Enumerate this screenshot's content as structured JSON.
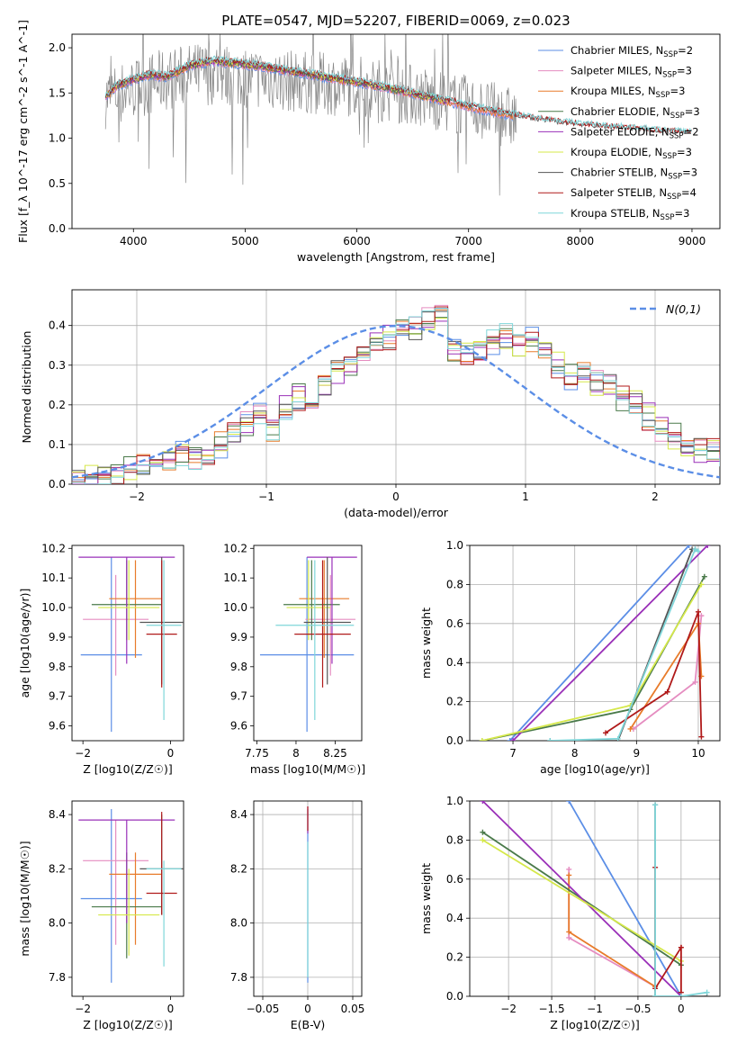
{
  "figure_title": "PLATE=0547, MJD=52207, FIBERID=0069, z=0.023",
  "colors": {
    "Chabrier MILES": "#5b8ee6",
    "Salpeter MILES": "#e58cc0",
    "Kroupa MILES": "#e87b2a",
    "Chabrier ELODIE": "#4a7a4a",
    "Salpeter ELODIE": "#9a30b8",
    "Kroupa ELODIE": "#d5e84a",
    "Chabrier STELIB": "#555555",
    "Salpeter STELIB": "#b01a1a",
    "Kroupa STELIB": "#7fd6d9",
    "data": "#888888",
    "gaussian": "#5b8ee6"
  },
  "chart_data": [
    {
      "id": "spectrum",
      "type": "line",
      "title": "PLATE=0547, MJD=52207, FIBERID=0069, z=0.023",
      "xlabel": "wavelength [Angstrom, rest frame]",
      "ylabel": "Flux [f_λ 10^-17 erg cm^-2 s^-1 A^-1]",
      "xlim": [
        3450,
        9250
      ],
      "ylim": [
        0,
        2.15
      ],
      "xticks": [
        4000,
        5000,
        6000,
        7000,
        8000,
        9000
      ],
      "yticks": [
        0.0,
        0.5,
        1.0,
        1.5,
        2.0
      ],
      "legend_loc": "top-right",
      "data_series": {
        "name": "data",
        "x_range": [
          3750,
          7430
        ],
        "trend_x": [
          3750,
          4000,
          4300,
          4600,
          5000,
          5500,
          6000,
          6500,
          7000,
          7400
        ],
        "trend_y": [
          1.45,
          1.55,
          1.65,
          1.72,
          1.68,
          1.62,
          1.58,
          1.48,
          1.35,
          1.22
        ]
      },
      "model_trend": {
        "x": [
          3750,
          3850,
          4000,
          4150,
          4300,
          4500,
          4700,
          4900,
          5100,
          5300,
          5500,
          5800,
          6100,
          6400,
          6700,
          7000,
          7200,
          7400,
          7600,
          7800,
          8000,
          8200,
          8400,
          8600,
          8800,
          9000
        ],
        "y": [
          1.45,
          1.58,
          1.65,
          1.7,
          1.68,
          1.8,
          1.85,
          1.83,
          1.8,
          1.76,
          1.72,
          1.66,
          1.6,
          1.52,
          1.44,
          1.35,
          1.3,
          1.25,
          1.2,
          1.17,
          1.14,
          1.12,
          1.1,
          1.08,
          1.06,
          1.05
        ]
      },
      "series": [
        {
          "name": "Chabrier MILES, N_SSP=2",
          "label_main": "Chabrier MILES, N",
          "label_sub": "SSP",
          "label_tail": "=2",
          "x_end": 7400
        },
        {
          "name": "Salpeter MILES, N_SSP=3",
          "label_main": "Salpeter MILES, N",
          "label_sub": "SSP",
          "label_tail": "=3",
          "x_end": 7400
        },
        {
          "name": "Kroupa MILES, N_SSP=3",
          "label_main": "Kroupa MILES, N",
          "label_sub": "SSP",
          "label_tail": "=3",
          "x_end": 7400
        },
        {
          "name": "Chabrier ELODIE, N_SSP=3",
          "label_main": "Chabrier ELODIE, N",
          "label_sub": "SSP",
          "label_tail": "=3",
          "x_end": 6800
        },
        {
          "name": "Salpeter ELODIE, N_SSP=2",
          "label_main": "Salpeter ELODIE, N",
          "label_sub": "SSP",
          "label_tail": "=2",
          "x_end": 6800
        },
        {
          "name": "Kroupa ELODIE, N_SSP=3",
          "label_main": "Kroupa ELODIE, N",
          "label_sub": "SSP",
          "label_tail": "=3",
          "x_end": 6800
        },
        {
          "name": "Chabrier STELIB, N_SSP=3",
          "label_main": "Chabrier STELIB, N",
          "label_sub": "SSP",
          "label_tail": "=3",
          "x_end": 9000
        },
        {
          "name": "Salpeter STELIB, N_SSP=4",
          "label_main": "Salpeter STELIB, N",
          "label_sub": "SSP",
          "label_tail": "=4",
          "x_end": 9000
        },
        {
          "name": "Kroupa STELIB, N_SSP=3",
          "label_main": "Kroupa STELIB, N",
          "label_sub": "SSP",
          "label_tail": "=3",
          "x_end": 9000
        }
      ]
    },
    {
      "id": "residuals",
      "type": "line",
      "xlabel": "(data-model)/error",
      "ylabel": "Normed distribution",
      "xlim": [
        -2.5,
        2.5
      ],
      "ylim": [
        0,
        0.49
      ],
      "xticks": [
        -2,
        -1,
        0,
        1,
        2
      ],
      "yticks": [
        0.0,
        0.1,
        0.2,
        0.3,
        0.4
      ],
      "grid": true,
      "legend": "N(0,1)",
      "legend_loc": "top-right",
      "hist_bin_edges_step": 0.1,
      "hist_mean": [
        0.01,
        0.015,
        0.025,
        0.033,
        0.04,
        0.045,
        0.05,
        0.06,
        0.08,
        0.072,
        0.085,
        0.1,
        0.13,
        0.15,
        0.17,
        0.14,
        0.19,
        0.22,
        0.2,
        0.25,
        0.29,
        0.31,
        0.33,
        0.36,
        0.37,
        0.38,
        0.39,
        0.41,
        0.43,
        0.34,
        0.33,
        0.34,
        0.36,
        0.37,
        0.35,
        0.36,
        0.33,
        0.3,
        0.27,
        0.28,
        0.26,
        0.25,
        0.22,
        0.2,
        0.17,
        0.14,
        0.12,
        0.1,
        0.09,
        0.085,
        0.08,
        0.07,
        0.06,
        0.05,
        0.045,
        0.035,
        0.03,
        0.025,
        0.02,
        0.015
      ],
      "gaussian": {
        "mean": 0,
        "sigma": 1
      }
    },
    {
      "id": "age_vs_Z",
      "type": "scatter",
      "xlabel": "Z [log10(Z/Z☉)]",
      "ylabel": "age [log10(age/yr)]",
      "xlim": [
        -2.25,
        0.3
      ],
      "ylim": [
        9.55,
        10.21
      ],
      "xticks": [
        -2,
        0
      ],
      "yticks": [
        9.6,
        9.7,
        9.8,
        9.9,
        10.0,
        10.1,
        10.2
      ],
      "points": [
        {
          "model": "Chabrier MILES",
          "x": -1.35,
          "y": 9.84,
          "xerr": 0.7,
          "yerr_lo": 0.26,
          "yerr_hi": 0.33
        },
        {
          "model": "Salpeter MILES",
          "x": -1.25,
          "y": 9.96,
          "xerr": 0.75,
          "yerr_lo": 0.19,
          "yerr_hi": 0.15
        },
        {
          "model": "Kroupa MILES",
          "x": -0.8,
          "y": 10.03,
          "xerr": 0.6,
          "yerr_lo": 0.2,
          "yerr_hi": 0.13
        },
        {
          "model": "Chabrier ELODIE",
          "x": -1.0,
          "y": 10.01,
          "xerr": 0.8,
          "yerr_lo": 0.12,
          "yerr_hi": 0.15
        },
        {
          "model": "Salpeter ELODIE",
          "x": -1.0,
          "y": 10.17,
          "xerr": 1.1,
          "yerr_lo": 0.36,
          "yerr_hi": 0.0
        },
        {
          "model": "Kroupa ELODIE",
          "x": -0.95,
          "y": 10.0,
          "xerr": 0.7,
          "yerr_lo": 0.11,
          "yerr_hi": 0.16
        },
        {
          "model": "Chabrier STELIB",
          "x": -0.2,
          "y": 9.95,
          "xerr": 0.5,
          "yerr_lo": 0.21,
          "yerr_hi": 0.22
        },
        {
          "model": "Salpeter STELIB",
          "x": -0.2,
          "y": 9.91,
          "xerr": 0.35,
          "yerr_lo": 0.18,
          "yerr_hi": 0.25
        },
        {
          "model": "Kroupa STELIB",
          "x": -0.15,
          "y": 9.94,
          "xerr": 0.4,
          "yerr_lo": 0.32,
          "yerr_hi": 0.22
        }
      ]
    },
    {
      "id": "age_vs_mass",
      "type": "scatter",
      "xlabel": "mass [log10(M/M☉)]",
      "xlim": [
        7.73,
        8.42
      ],
      "ylim": [
        9.55,
        10.21
      ],
      "xticks": [
        7.75,
        8.0,
        8.25
      ],
      "yticks": [
        9.6,
        9.7,
        9.8,
        9.9,
        10.0,
        10.1,
        10.2
      ],
      "points": [
        {
          "model": "Chabrier MILES",
          "x": 8.07,
          "y": 9.84,
          "xerr": 0.3,
          "yerr_lo": 0.26,
          "yerr_hi": 0.33
        },
        {
          "model": "Salpeter MILES",
          "x": 8.22,
          "y": 9.96,
          "xerr": 0.16,
          "yerr_lo": 0.19,
          "yerr_hi": 0.15
        },
        {
          "model": "Kroupa MILES",
          "x": 8.18,
          "y": 10.03,
          "xerr": 0.16,
          "yerr_lo": 0.2,
          "yerr_hi": 0.13
        },
        {
          "model": "Chabrier ELODIE",
          "x": 8.1,
          "y": 10.01,
          "xerr": 0.18,
          "yerr_lo": 0.12,
          "yerr_hi": 0.15
        },
        {
          "model": "Salpeter ELODIE",
          "x": 8.23,
          "y": 10.17,
          "xerr": 0.16,
          "yerr_lo": 0.36,
          "yerr_hi": 0.0
        },
        {
          "model": "Kroupa ELODIE",
          "x": 8.08,
          "y": 10.0,
          "xerr": 0.14,
          "yerr_lo": 0.11,
          "yerr_hi": 0.16
        },
        {
          "model": "Chabrier STELIB",
          "x": 8.2,
          "y": 9.95,
          "xerr": 0.15,
          "yerr_lo": 0.21,
          "yerr_hi": 0.22
        },
        {
          "model": "Salpeter STELIB",
          "x": 8.17,
          "y": 9.91,
          "xerr": 0.18,
          "yerr_lo": 0.18,
          "yerr_hi": 0.25
        },
        {
          "model": "Kroupa STELIB",
          "x": 8.12,
          "y": 9.94,
          "xerr": 0.25,
          "yerr_lo": 0.32,
          "yerr_hi": 0.22
        }
      ]
    },
    {
      "id": "massweight_vs_age",
      "type": "line",
      "xlabel": "age [log10(age/yr)]",
      "ylabel": "mass weight",
      "xlim": [
        6.3,
        10.35
      ],
      "ylim": [
        0,
        1.0
      ],
      "xticks": [
        7,
        8,
        9,
        10
      ],
      "yticks": [
        0.0,
        0.2,
        0.4,
        0.6,
        0.8,
        1.0
      ],
      "grid": true,
      "series": [
        {
          "model": "Chabrier MILES",
          "x": [
            6.95,
            9.85
          ],
          "y": [
            0.0,
            1.0
          ]
        },
        {
          "model": "Salpeter MILES",
          "x": [
            8.95,
            9.95,
            10.05
          ],
          "y": [
            0.06,
            0.3,
            0.64
          ]
        },
        {
          "model": "Kroupa MILES",
          "x": [
            8.9,
            10.0,
            10.05
          ],
          "y": [
            0.06,
            0.6,
            0.33
          ]
        },
        {
          "model": "Chabrier ELODIE",
          "x": [
            6.5,
            8.9,
            10.1
          ],
          "y": [
            0.0,
            0.16,
            0.84
          ]
        },
        {
          "model": "Salpeter ELODIE",
          "x": [
            7.0,
            10.15
          ],
          "y": [
            0.0,
            1.0
          ]
        },
        {
          "model": "Kroupa ELODIE",
          "x": [
            6.5,
            8.9,
            10.05
          ],
          "y": [
            0.0,
            0.18,
            0.8
          ]
        },
        {
          "model": "Chabrier STELIB",
          "x": [
            7.6,
            8.7,
            9.9,
            9.95
          ],
          "y": [
            0.0,
            0.0,
            0.98,
            0.98
          ]
        },
        {
          "model": "Salpeter STELIB",
          "x": [
            8.5,
            9.5,
            10.0,
            10.05
          ],
          "y": [
            0.04,
            0.25,
            0.66,
            0.02
          ]
        },
        {
          "model": "Kroupa STELIB",
          "x": [
            7.6,
            8.7,
            9.95,
            10.0
          ],
          "y": [
            0.0,
            0.01,
            0.98,
            0.97
          ]
        }
      ]
    },
    {
      "id": "mass_vs_Z",
      "type": "scatter",
      "xlabel": "Z [log10(Z/Z☉)]",
      "ylabel": "mass [log10(M/M☉)]",
      "xlim": [
        -2.25,
        0.3
      ],
      "ylim": [
        7.73,
        8.45
      ],
      "xticks": [
        -2,
        0
      ],
      "yticks": [
        7.8,
        8.0,
        8.2,
        8.4
      ],
      "points": [
        {
          "model": "Chabrier MILES",
          "x": -1.35,
          "y": 8.09,
          "xerr": 0.7,
          "yerr_lo": 0.31,
          "yerr_hi": 0.33
        },
        {
          "model": "Salpeter MILES",
          "x": -1.25,
          "y": 8.23,
          "xerr": 0.75,
          "yerr_lo": 0.31,
          "yerr_hi": 0.15
        },
        {
          "model": "Kroupa MILES",
          "x": -0.8,
          "y": 8.18,
          "xerr": 0.6,
          "yerr_lo": 0.26,
          "yerr_hi": 0.08
        },
        {
          "model": "Chabrier ELODIE",
          "x": -1.0,
          "y": 8.06,
          "xerr": 0.8,
          "yerr_lo": 0.19,
          "yerr_hi": 0.2
        },
        {
          "model": "Salpeter ELODIE",
          "x": -1.0,
          "y": 8.38,
          "xerr": 1.1,
          "yerr_lo": 0.38,
          "yerr_hi": 0.0
        },
        {
          "model": "Kroupa ELODIE",
          "x": -0.95,
          "y": 8.03,
          "xerr": 0.7,
          "yerr_lo": 0.15,
          "yerr_hi": 0.17
        },
        {
          "model": "Chabrier STELIB",
          "x": -0.2,
          "y": 8.2,
          "xerr": 0.5,
          "yerr_lo": 0.17,
          "yerr_hi": 0.2
        },
        {
          "model": "Salpeter STELIB",
          "x": -0.2,
          "y": 8.11,
          "xerr": 0.35,
          "yerr_lo": 0.08,
          "yerr_hi": 0.3
        },
        {
          "model": "Kroupa STELIB",
          "x": -0.15,
          "y": 8.2,
          "xerr": 0.4,
          "yerr_lo": 0.36,
          "yerr_hi": 0.03
        }
      ]
    },
    {
      "id": "mass_vs_ebv",
      "type": "scatter",
      "xlabel": "E(B-V)",
      "xlim": [
        -0.06,
        0.06
      ],
      "ylim": [
        7.73,
        8.45
      ],
      "xticks": [
        -0.05,
        0.0,
        0.05
      ],
      "yticks": [
        7.8,
        8.0,
        8.2,
        8.4
      ],
      "grid": true,
      "points": [
        {
          "model": "Chabrier MILES",
          "x": 0.0,
          "y": 8.09,
          "yerr_lo": 0.31,
          "yerr_hi": 0.33
        },
        {
          "model": "Salpeter ELODIE",
          "x": 0.0,
          "y": 8.38,
          "yerr_lo": 0.05,
          "yerr_hi": 0.05
        },
        {
          "model": "Salpeter STELIB",
          "x": 0.0,
          "y": 8.4,
          "yerr_lo": 0.06,
          "yerr_hi": 0.03
        },
        {
          "model": "Kroupa STELIB",
          "x": 0.0,
          "y": 8.1,
          "yerr_lo": 0.3,
          "yerr_hi": 0.2
        }
      ]
    },
    {
      "id": "massweight_vs_Z",
      "type": "line",
      "xlabel": "Z [log10(Z/Z☉)]",
      "ylabel": "mass weight",
      "xlim": [
        -2.45,
        0.45
      ],
      "ylim": [
        0,
        1.0
      ],
      "xticks": [
        -2.0,
        -1.5,
        -1.0,
        -0.5,
        0.0
      ],
      "yticks": [
        0.0,
        0.2,
        0.4,
        0.6,
        0.8,
        1.0
      ],
      "grid": true,
      "series": [
        {
          "model": "Chabrier MILES",
          "x": [
            -1.3,
            0.0
          ],
          "y": [
            1.0,
            0.0
          ]
        },
        {
          "model": "Salpeter MILES",
          "x": [
            -1.3,
            -1.3,
            -0.3
          ],
          "y": [
            0.65,
            0.3,
            0.05
          ]
        },
        {
          "model": "Kroupa MILES",
          "x": [
            -1.3,
            -1.3,
            -0.3
          ],
          "y": [
            0.62,
            0.33,
            0.05
          ]
        },
        {
          "model": "Chabrier ELODIE",
          "x": [
            -2.3,
            0.0
          ],
          "y": [
            0.84,
            0.16
          ]
        },
        {
          "model": "Salpeter ELODIE",
          "x": [
            -2.3,
            0.0
          ],
          "y": [
            1.0,
            0.0
          ]
        },
        {
          "model": "Kroupa ELODIE",
          "x": [
            -2.3,
            0.0
          ],
          "y": [
            0.8,
            0.18
          ]
        },
        {
          "model": "Chabrier STELIB",
          "x": [
            -0.3,
            -0.3,
            0.0,
            0.3
          ],
          "y": [
            0.98,
            0.0,
            0.0,
            0.0
          ]
        },
        {
          "model": "Salpeter STELIB",
          "x": [
            -0.3,
            -0.3,
            0.0,
            0.0
          ],
          "y": [
            0.66,
            0.04,
            0.25,
            0.02
          ]
        },
        {
          "model": "Kroupa STELIB",
          "x": [
            -0.3,
            -0.3,
            0.0,
            0.3
          ],
          "y": [
            0.98,
            0.0,
            0.0,
            0.02
          ]
        }
      ]
    }
  ]
}
